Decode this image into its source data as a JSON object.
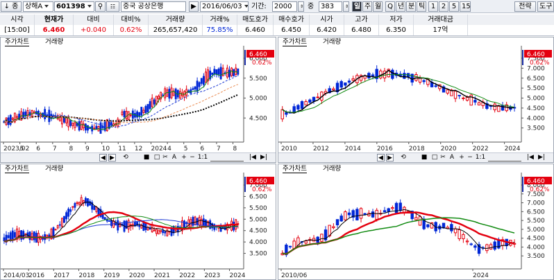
{
  "toolbar": {
    "nav_label": "↓ 종",
    "market_select": "상해A",
    "code_value": "601398",
    "name_value": "중국 공상은행",
    "date_value": "2016/06/03",
    "period_label": "기간:",
    "period_value": "2000",
    "count_label": "중",
    "count_value": "383",
    "interval_buttons": [
      "일",
      "주",
      "월",
      "Q",
      "년",
      "분",
      "틱",
      "1",
      "2",
      "5",
      "15"
    ],
    "strategy_button": "전략",
    "tool_button": "도구"
  },
  "quote": {
    "headers": [
      "시각",
      "현재가",
      "대비",
      "대비%",
      "거래량",
      "거래%",
      "매도호가",
      "매수호가",
      "시가",
      "고가",
      "저가",
      "거래대금"
    ],
    "values": [
      "[15:00]",
      "6.460",
      "+0.040",
      "0.62%",
      "265,657,420",
      "75.85%",
      "6.460",
      "6.450",
      "6.420",
      "6.480",
      "6.350",
      "17억"
    ]
  },
  "panels": [
    {
      "tab1": "주가차트",
      "tab2": "거래량",
      "price_badge": "6.460",
      "change_badge": "0.62%",
      "y_ticks": [
        "6.000",
        "5.500",
        "5.000",
        "4.500"
      ],
      "x_labels": [
        "2023/02",
        "5",
        "6",
        "7",
        "8",
        "9",
        "10",
        "11",
        "12",
        "2024",
        "4",
        "5",
        "6",
        "7",
        "8"
      ]
    },
    {
      "tab1": "주가차트",
      "tab2": "거래량",
      "price_badge": "6.460",
      "change_badge": "0.62%",
      "y_ticks": [
        "7.500",
        "7.000",
        "6.500",
        "5.500",
        "5.000",
        "4.500",
        "4.000",
        "3.500"
      ],
      "x_labels": [
        "2010",
        "2012",
        "2014",
        "2016",
        "2018",
        "2020",
        "2022",
        "2024"
      ]
    },
    {
      "tab1": "주가차트",
      "tab2": "거래량",
      "price_badge": "6.460",
      "change_badge": "0.62%",
      "y_ticks": [
        "7.000",
        "6.500",
        "5.500",
        "5.000",
        "4.500",
        "4.000",
        "3.500"
      ],
      "x_labels": [
        "2014/03",
        "2016",
        "2017",
        "2018",
        "2019",
        "2020",
        "2021",
        "2022",
        "2023",
        "2024"
      ]
    },
    {
      "tab1": "주가차트",
      "tab2": "거래량",
      "price_badge": "6.460",
      "change_badge": "0.62%",
      "y_ticks": [
        "8.000",
        "7.500",
        "7.000",
        "6.500",
        "5.500",
        "5.000",
        "4.500",
        "4.000",
        "3.500"
      ],
      "x_labels": [
        "2010/06",
        "2024"
      ]
    }
  ],
  "control_bar": {
    "zoom_label": "1:1",
    "icons": [
      "prev-icon",
      "next-icon",
      "scroll-left-icon",
      "scroll-right-icon",
      "refresh-icon",
      "stop-icon",
      "square-icon",
      "scissors-icon",
      "text-tool-icon",
      "zoom-in-icon",
      "zoom-out-icon",
      "first-icon",
      "last-icon"
    ]
  },
  "colors": {
    "up": "#e4000f",
    "down": "#0027d6",
    "ma_black": "#000000",
    "ma_red": "#e4000f",
    "ma_green": "#108a10",
    "ma_blue": "#1c39d4"
  }
}
